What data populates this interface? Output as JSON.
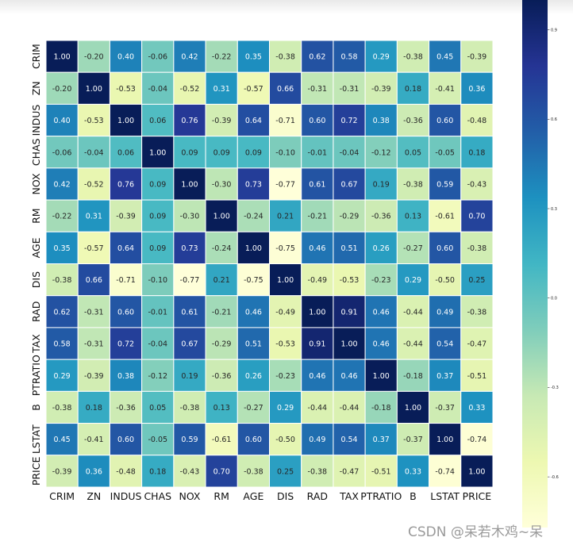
{
  "chart_data": {
    "type": "heatmap",
    "labels": [
      "CRIM",
      "ZN",
      "INDUS",
      "CHAS",
      "NOX",
      "RM",
      "AGE",
      "DIS",
      "RAD",
      "TAX",
      "PTRATIO",
      "B",
      "LSTAT",
      "PRICE"
    ],
    "values": [
      [
        1.0,
        -0.2,
        0.4,
        -0.06,
        0.42,
        -0.22,
        0.35,
        -0.38,
        0.62,
        0.58,
        0.29,
        -0.38,
        0.45,
        -0.39
      ],
      [
        -0.2,
        1.0,
        -0.53,
        -0.04,
        -0.52,
        0.31,
        -0.57,
        0.66,
        -0.31,
        -0.31,
        -0.39,
        0.18,
        -0.41,
        0.36
      ],
      [
        0.4,
        -0.53,
        1.0,
        0.06,
        0.76,
        -0.39,
        0.64,
        -0.71,
        0.6,
        0.72,
        0.38,
        -0.36,
        0.6,
        -0.48
      ],
      [
        -0.06,
        -0.04,
        0.06,
        1.0,
        0.09,
        0.09,
        0.09,
        -0.1,
        -0.01,
        -0.04,
        -0.12,
        0.05,
        -0.05,
        0.18
      ],
      [
        0.42,
        -0.52,
        0.76,
        0.09,
        1.0,
        -0.3,
        0.73,
        -0.77,
        0.61,
        0.67,
        0.19,
        -0.38,
        0.59,
        -0.43
      ],
      [
        -0.22,
        0.31,
        -0.39,
        0.09,
        -0.3,
        1.0,
        -0.24,
        0.21,
        -0.21,
        -0.29,
        -0.36,
        0.13,
        -0.61,
        0.7
      ],
      [
        0.35,
        -0.57,
        0.64,
        0.09,
        0.73,
        -0.24,
        1.0,
        -0.75,
        0.46,
        0.51,
        0.26,
        -0.27,
        0.6,
        -0.38
      ],
      [
        -0.38,
        0.66,
        -0.71,
        -0.1,
        -0.77,
        0.21,
        -0.75,
        1.0,
        -0.49,
        -0.53,
        -0.23,
        0.29,
        -0.5,
        0.25
      ],
      [
        0.62,
        -0.31,
        0.6,
        -0.01,
        0.61,
        -0.21,
        0.46,
        -0.49,
        1.0,
        0.91,
        0.46,
        -0.44,
        0.49,
        -0.38
      ],
      [
        0.58,
        -0.31,
        0.72,
        -0.04,
        0.67,
        -0.29,
        0.51,
        -0.53,
        0.91,
        1.0,
        0.46,
        -0.44,
        0.54,
        -0.47
      ],
      [
        0.29,
        -0.39,
        0.38,
        -0.12,
        0.19,
        -0.36,
        0.26,
        -0.23,
        0.46,
        0.46,
        1.0,
        -0.18,
        0.37,
        -0.51
      ],
      [
        -0.38,
        0.18,
        -0.36,
        0.05,
        -0.38,
        0.13,
        -0.27,
        0.29,
        -0.44,
        -0.44,
        -0.18,
        1.0,
        -0.37,
        0.33
      ],
      [
        0.45,
        -0.41,
        0.6,
        -0.05,
        0.59,
        -0.61,
        0.6,
        -0.5,
        0.49,
        0.54,
        0.37,
        -0.37,
        1.0,
        -0.74
      ],
      [
        -0.39,
        0.36,
        -0.48,
        0.18,
        -0.43,
        0.7,
        -0.38,
        0.25,
        -0.38,
        -0.47,
        -0.51,
        0.33,
        -0.74,
        1.0
      ]
    ],
    "colormap": "YlGnBu",
    "colormap_stops": [
      "#ffffd9",
      "#edf8b1",
      "#c7e9b4",
      "#7fcdbb",
      "#41b6c4",
      "#1d91c0",
      "#225ea8",
      "#253494",
      "#081d58"
    ],
    "vmin": -0.77,
    "vmax": 1.0,
    "annot_format": "2 decimals",
    "colorbar_ticks": [
      {
        "value": 0.9,
        "label": "0.9"
      },
      {
        "value": 0.6,
        "label": "0.6"
      },
      {
        "value": 0.3,
        "label": "0.3"
      },
      {
        "value": 0.0,
        "label": "0.0"
      },
      {
        "value": -0.3,
        "label": "-0.3"
      },
      {
        "value": -0.6,
        "label": "-0.6"
      }
    ],
    "cell_border_color": "#ffffff",
    "grid": false,
    "legend": "colorbar-right"
  },
  "watermark": "CSDN @呆若木鸡~呆"
}
